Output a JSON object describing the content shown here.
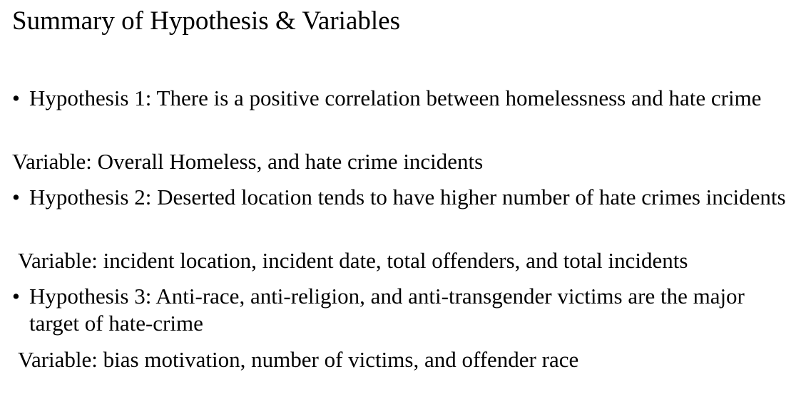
{
  "title": "Summary of Hypothesis & Variables",
  "bullet_glyph": "•",
  "hypotheses": [
    {
      "text": "Hypothesis 1: There is a positive correlation between homelessness and hate crime",
      "variable": "Variable: Overall Homeless, and hate crime incidents"
    },
    {
      "text": "Hypothesis 2: Deserted location tends to have higher number of hate crimes incidents",
      "variable": "Variable: incident location, incident date, total offenders, and total incidents"
    },
    {
      "text": "Hypothesis 3: Anti-race, anti-religion, and anti-transgender victims are the major target of hate-crime",
      "variable": "Variable: bias motivation, number of victims, and offender race"
    }
  ]
}
